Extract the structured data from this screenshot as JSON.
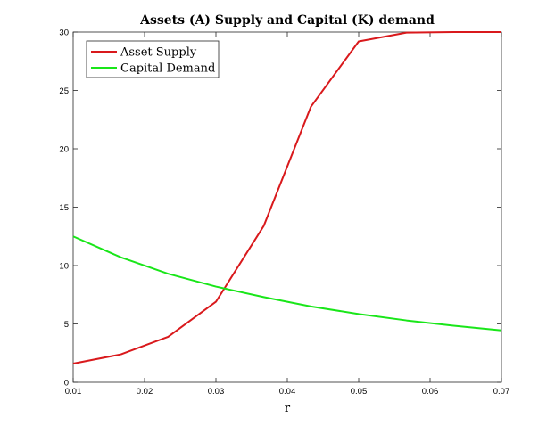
{
  "chart_data": {
    "type": "line",
    "title": "Assets (A) Supply and Capital (K) demand",
    "xlabel": "r",
    "ylabel": "",
    "xlim": [
      0.01,
      0.07
    ],
    "ylim": [
      0,
      30
    ],
    "xticks": [
      "0.01",
      "0.02",
      "0.03",
      "0.04",
      "0.05",
      "0.06",
      "0.07"
    ],
    "yticks": [
      "0",
      "5",
      "10",
      "15",
      "20",
      "25",
      "30"
    ],
    "grid": false,
    "legend_position": "top-left",
    "series": [
      {
        "name": "Asset Supply",
        "color": "#d9191c",
        "x": [
          0.01,
          0.0167,
          0.0233,
          0.03,
          0.0367,
          0.0433,
          0.05,
          0.0567,
          0.0633,
          0.07
        ],
        "y": [
          1.6,
          2.4,
          3.9,
          6.9,
          13.4,
          23.6,
          29.2,
          29.95,
          30.0,
          30.0
        ]
      },
      {
        "name": "Capital Demand",
        "color": "#19e619",
        "x": [
          0.01,
          0.0167,
          0.0233,
          0.03,
          0.0367,
          0.0433,
          0.05,
          0.0567,
          0.0633,
          0.07
        ],
        "y": [
          12.5,
          10.7,
          9.3,
          8.2,
          7.3,
          6.5,
          5.85,
          5.3,
          4.85,
          4.45
        ]
      }
    ]
  }
}
